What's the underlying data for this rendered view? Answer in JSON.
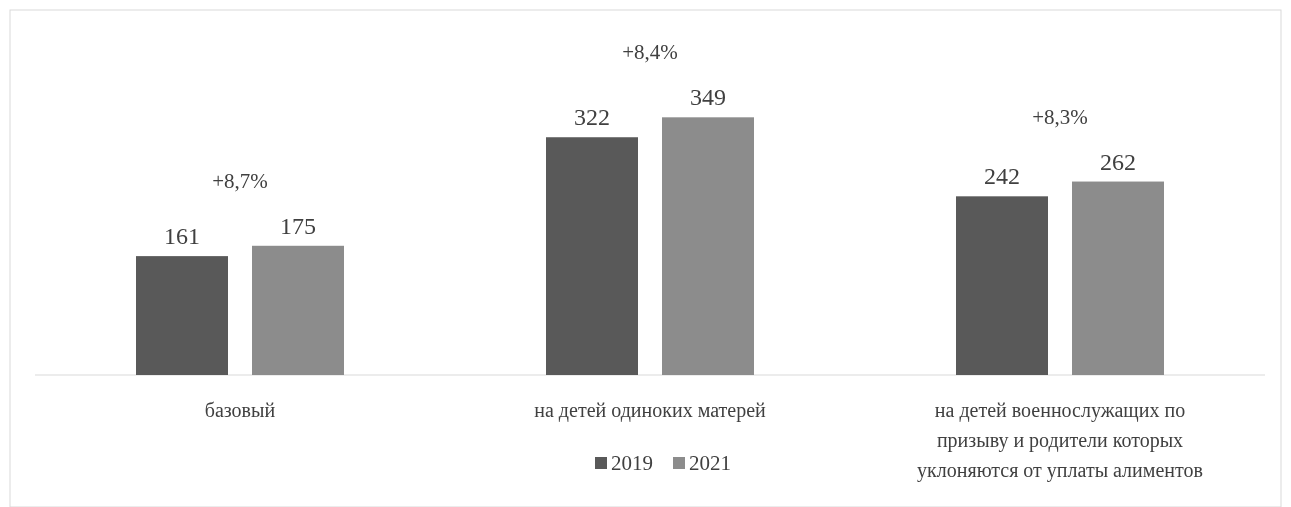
{
  "chart_data": {
    "type": "bar",
    "categories": [
      "базовый",
      "на детей одиноких матерей",
      "на детей военнослужащих по призыву и родители которых уклоняются от уплаты алиментов"
    ],
    "series": [
      {
        "name": "2019",
        "color": "#595959",
        "values": [
          161,
          322,
          242
        ]
      },
      {
        "name": "2021",
        "color": "#8c8c8c",
        "values": [
          175,
          349,
          262
        ]
      }
    ],
    "data_labels": true,
    "legend": "bottom",
    "annotations": [
      "+8,7%",
      "+8,4%",
      "+8,3%"
    ]
  }
}
